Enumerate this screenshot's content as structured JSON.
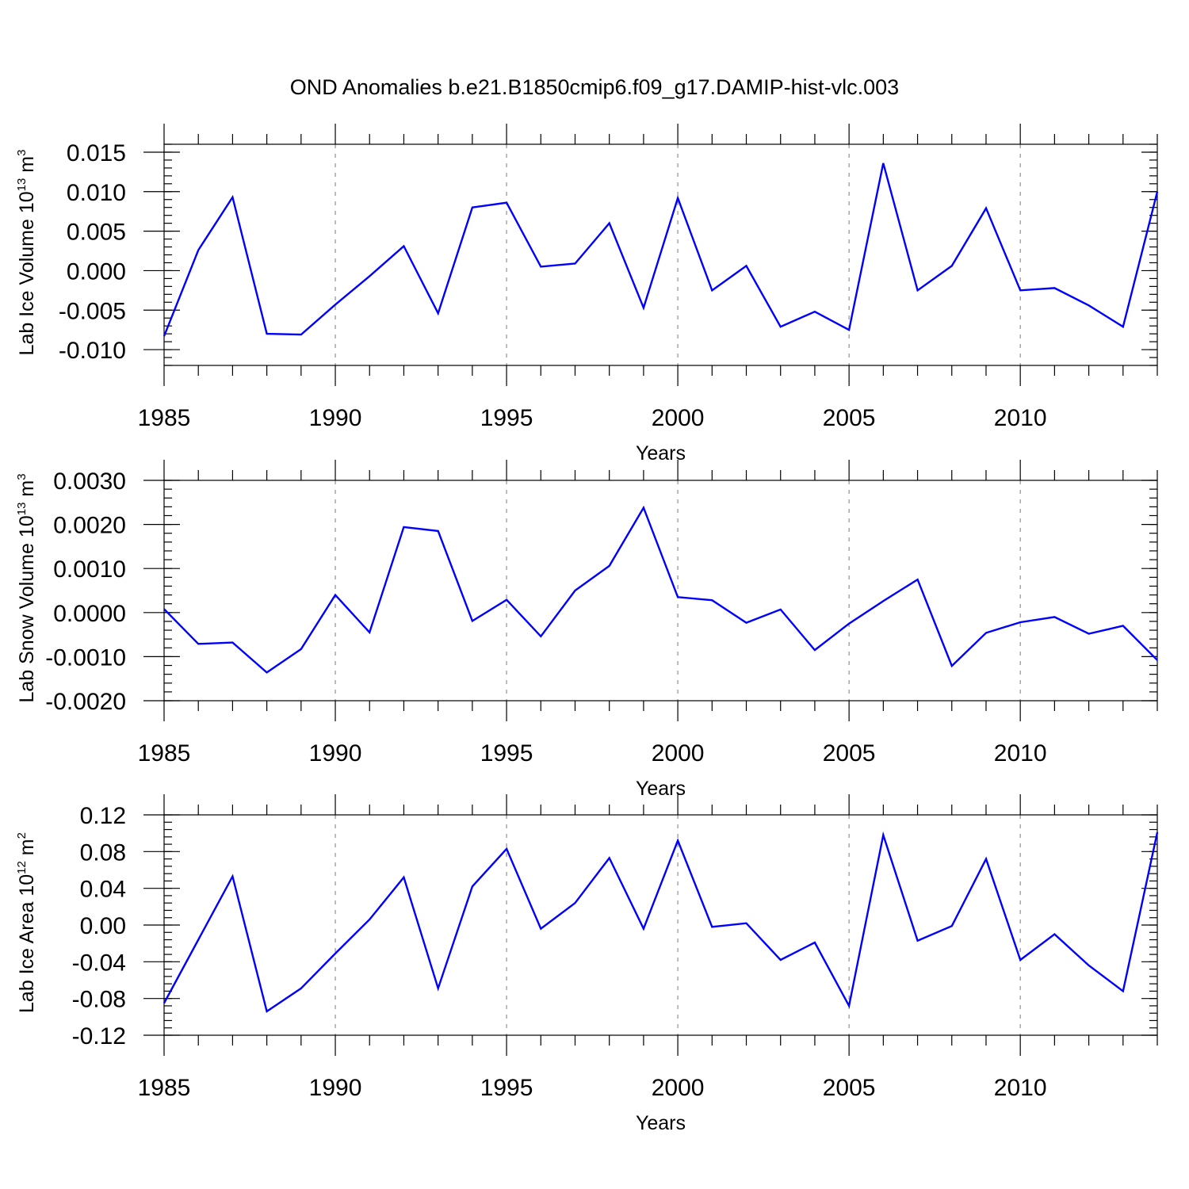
{
  "title": "OND Anomalies b.e21.B1850cmip6.f09_g17.DAMIP-hist-vlc.003",
  "line_color": "#0000ff",
  "chart_data": [
    {
      "type": "line",
      "title": "",
      "xlabel": "Years",
      "ylabel": "Lab Ice Volume 10",
      "ylabel_sup1": "13",
      "ylabel_mid": " m",
      "ylabel_sup2": "3",
      "xlim": [
        1985,
        2014
      ],
      "ylim": [
        -0.012,
        0.016
      ],
      "grid": "vertical dashed at major x ticks",
      "x_ticks": [
        1985,
        1990,
        1995,
        2000,
        2005,
        2010
      ],
      "x_tick_labels": [
        "1985",
        "1990",
        "1995",
        "2000",
        "2005",
        "2010"
      ],
      "y_ticks": [
        0.015,
        0.01,
        0.005,
        0.0,
        -0.005,
        -0.01
      ],
      "y_tick_labels": [
        "0.015",
        "0.010",
        "0.005",
        "0.000",
        "-0.005",
        "-0.010"
      ],
      "y_minor_step": 0.001,
      "x": [
        1985,
        1986,
        1987,
        1988,
        1989,
        1990,
        1991,
        1992,
        1993,
        1994,
        1995,
        1996,
        1997,
        1998,
        1999,
        2000,
        2001,
        2002,
        2003,
        2004,
        2005,
        2006,
        2007,
        2008,
        2009,
        2010,
        2011,
        2012,
        2013,
        2014
      ],
      "series": [
        {
          "values": [
            -0.0083,
            0.0026,
            0.0093,
            -0.008,
            -0.0081,
            -0.0043,
            -0.0007,
            0.0031,
            -0.0054,
            0.008,
            0.0086,
            0.0005,
            0.0009,
            0.006,
            -0.0047,
            0.0092,
            -0.0025,
            0.0006,
            -0.0071,
            -0.0052,
            -0.0075,
            0.0136,
            -0.0025,
            0.0006,
            0.0079,
            -0.0025,
            -0.0022,
            -0.0044,
            -0.0071,
            0.01
          ]
        }
      ]
    },
    {
      "type": "line",
      "title": "",
      "xlabel": "Years",
      "ylabel": "Lab Snow Volume 10",
      "ylabel_sup1": "13",
      "ylabel_mid": " m",
      "ylabel_sup2": "3",
      "xlim": [
        1985,
        2014
      ],
      "ylim": [
        -0.002,
        0.003
      ],
      "grid": "vertical dashed at major x ticks",
      "x_ticks": [
        1985,
        1990,
        1995,
        2000,
        2005,
        2010
      ],
      "x_tick_labels": [
        "1985",
        "1990",
        "1995",
        "2000",
        "2005",
        "2010"
      ],
      "y_ticks": [
        0.003,
        0.002,
        0.001,
        0.0,
        -0.001,
        -0.002
      ],
      "y_tick_labels": [
        "0.0030",
        "0.0020",
        "0.0010",
        "0.0000",
        "-0.0010",
        "-0.0020"
      ],
      "y_minor_step": 0.0002,
      "x": [
        1985,
        1986,
        1987,
        1988,
        1989,
        1990,
        1991,
        1992,
        1993,
        1994,
        1995,
        1996,
        1997,
        1998,
        1999,
        2000,
        2001,
        2002,
        2003,
        2004,
        2005,
        2006,
        2007,
        2008,
        2009,
        2010,
        2011,
        2012,
        2013,
        2014
      ],
      "series": [
        {
          "values": [
            8e-05,
            -0.00071,
            -0.00068,
            -0.00136,
            -0.00083,
            0.0004,
            -0.00045,
            0.00194,
            0.00185,
            -0.00019,
            0.00029,
            -0.00054,
            0.0005,
            0.00106,
            0.00238,
            0.00035,
            0.00028,
            -0.00023,
            7e-05,
            -0.00085,
            -0.00025,
            0.00026,
            0.00075,
            -0.00121,
            -0.00046,
            -0.00022,
            -0.0001,
            -0.00048,
            -0.0003,
            -0.00108
          ]
        }
      ]
    },
    {
      "type": "line",
      "title": "",
      "xlabel": "Years",
      "ylabel": "Lab Ice Area 10",
      "ylabel_sup1": "12",
      "ylabel_mid": " m",
      "ylabel_sup2": "2",
      "xlim": [
        1985,
        2014
      ],
      "ylim": [
        -0.12,
        0.12
      ],
      "grid": "vertical dashed at major x ticks",
      "x_ticks": [
        1985,
        1990,
        1995,
        2000,
        2005,
        2010
      ],
      "x_tick_labels": [
        "1985",
        "1990",
        "1995",
        "2000",
        "2005",
        "2010"
      ],
      "y_ticks": [
        0.12,
        0.08,
        0.04,
        0.0,
        -0.04,
        -0.08,
        -0.12
      ],
      "y_tick_labels": [
        "0.12",
        "0.08",
        "0.04",
        "0.00",
        "-0.04",
        "-0.08",
        "-0.12"
      ],
      "y_minor_step": 0.008,
      "x": [
        1985,
        1986,
        1987,
        1988,
        1989,
        1990,
        1991,
        1992,
        1993,
        1994,
        1995,
        1996,
        1997,
        1998,
        1999,
        2000,
        2001,
        2002,
        2003,
        2004,
        2005,
        2006,
        2007,
        2008,
        2009,
        2010,
        2011,
        2012,
        2013,
        2014
      ],
      "series": [
        {
          "values": [
            -0.085,
            -0.016,
            0.053,
            -0.094,
            -0.069,
            -0.031,
            0.006,
            0.052,
            -0.069,
            0.042,
            0.083,
            -0.004,
            0.024,
            0.073,
            -0.004,
            0.092,
            -0.002,
            0.002,
            -0.038,
            -0.019,
            -0.088,
            0.098,
            -0.017,
            -0.001,
            0.072,
            -0.038,
            -0.01,
            -0.044,
            -0.072,
            0.101
          ]
        }
      ]
    }
  ]
}
